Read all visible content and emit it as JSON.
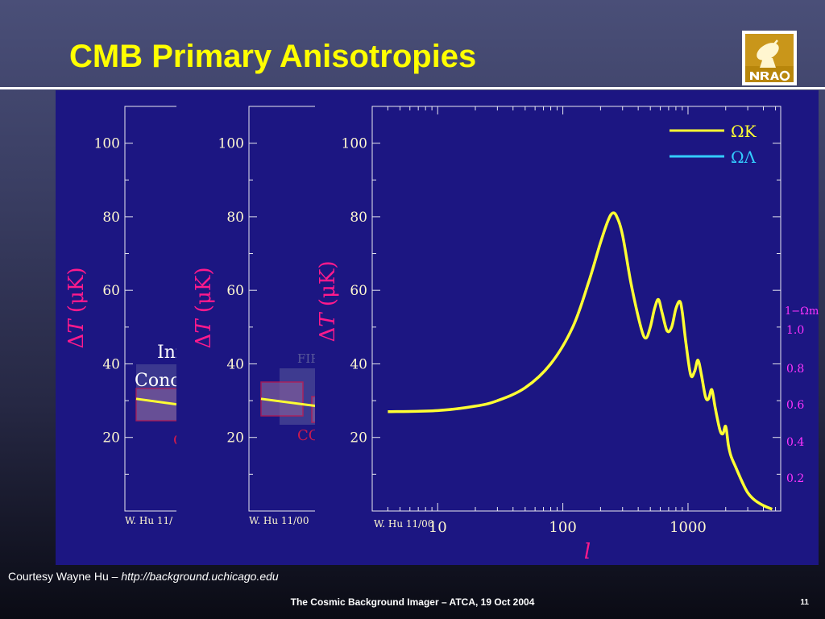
{
  "slide": {
    "title": "CMB Primary Anisotropies",
    "logo_text": "NRAO",
    "credit_prefix": "Courtesy Wayne Hu – ",
    "credit_url": "http://background.uchicago.edu",
    "footer": "The Cosmic Background Imager – ATCA, 19 Oct 2004",
    "page_number": "11"
  },
  "colors": {
    "title": "#ffff00",
    "panel_bg": "#1c1682",
    "curve": "#ffff33",
    "omega_lambda": "#33ccff",
    "axis_label": "#ff1a8c",
    "right_axis": "#ff33ff"
  },
  "chart_data": [
    {
      "type": "line",
      "panel": "left-partial",
      "ylabel_parts": [
        "Δ",
        "T",
        " (μK)"
      ],
      "yticks": [
        20,
        40,
        60,
        80,
        100
      ],
      "ylim": [
        0,
        110
      ],
      "credit": "W. Hu 11/",
      "annotations": [
        "Inf",
        "Conc",
        "C"
      ],
      "series": [
        {
          "x": [
            0,
            1
          ],
          "values": [
            30.5,
            29
          ]
        }
      ]
    },
    {
      "type": "line",
      "panel": "middle-partial",
      "ylabel_parts": [
        "Δ",
        "T",
        " (μK)"
      ],
      "yticks": [
        20,
        40,
        60,
        80,
        100
      ],
      "ylim": [
        0,
        110
      ],
      "credit": "W. Hu 11/00",
      "annotations": [
        "FIR",
        "CO"
      ],
      "series": [
        {
          "x": [
            0,
            1
          ],
          "values": [
            30.5,
            28.5
          ]
        }
      ]
    },
    {
      "type": "line",
      "panel": "main",
      "xscale": "log",
      "xlabel": "l",
      "ylabel_parts": [
        "Δ",
        "T",
        " (μK)"
      ],
      "xlim": [
        3,
        5500
      ],
      "ylim": [
        0,
        110
      ],
      "xticks": [
        10,
        100,
        1000
      ],
      "yticks": [
        20,
        40,
        60,
        80,
        100
      ],
      "right_axis": {
        "label": "1−Ωm",
        "ticks": [
          "1.0",
          "0.8",
          "0.6",
          "0.4",
          "0.2"
        ]
      },
      "legend": {
        "position": "top-right",
        "entries": [
          "ΩK",
          "ΩΛ"
        ]
      },
      "credit": "W. Hu 11/00",
      "series": [
        {
          "name": "ΩK",
          "x": [
            4,
            10,
            20,
            30,
            50,
            80,
            120,
            160,
            200,
            230,
            250,
            270,
            300,
            350,
            420,
            460,
            500,
            540,
            580,
            620,
            680,
            740,
            800,
            860,
            900,
            960,
            1050,
            1130,
            1200,
            1280,
            1380,
            1460,
            1550,
            1650,
            1800,
            1900,
            2000,
            2100,
            2200,
            2400,
            2700,
            3000,
            3400,
            4000,
            4700
          ],
          "values": [
            27,
            27.3,
            28.5,
            30,
            33.5,
            40,
            50,
            62,
            73,
            79,
            81,
            80,
            75,
            62,
            50,
            47,
            50,
            55,
            57.5,
            54,
            49,
            50,
            55,
            57,
            54,
            46,
            37,
            38,
            41,
            37,
            31,
            30.5,
            33,
            28,
            22,
            21,
            23,
            18,
            15,
            12,
            8,
            5,
            3,
            1.5,
            0.5
          ]
        }
      ]
    }
  ]
}
